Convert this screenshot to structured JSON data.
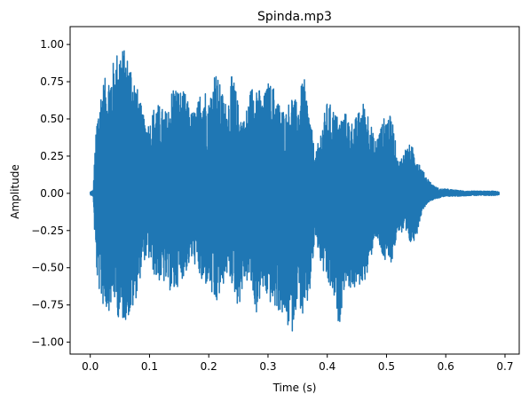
{
  "chart_data": {
    "type": "line",
    "title": "Spinda.mp3",
    "xlabel": "Time (s)",
    "ylabel": "Amplitude",
    "xlim": [
      -0.034,
      0.724
    ],
    "ylim": [
      -1.08,
      1.12
    ],
    "x_ticks": [
      0.0,
      0.1,
      0.2,
      0.3,
      0.4,
      0.5,
      0.6,
      0.7
    ],
    "x_tick_labels": [
      "0.0",
      "0.1",
      "0.2",
      "0.3",
      "0.4",
      "0.5",
      "0.6",
      "0.7"
    ],
    "y_ticks": [
      -1.0,
      -0.75,
      -0.5,
      -0.25,
      0.0,
      0.25,
      0.5,
      0.75,
      1.0
    ],
    "y_tick_labels": [
      "−1.00",
      "−0.75",
      "−0.50",
      "−0.25",
      "0.00",
      "0.25",
      "0.50",
      "0.75",
      "1.00"
    ],
    "grid": false,
    "series": [
      {
        "color": "#1f77b4",
        "description_of_shape": "dense audio waveform oscillating around zero",
        "envelope": {
          "t": [
            0.0,
            0.005,
            0.008,
            0.012,
            0.02,
            0.03,
            0.04,
            0.05,
            0.06,
            0.07,
            0.08,
            0.09,
            0.1,
            0.11,
            0.12,
            0.13,
            0.14,
            0.15,
            0.16,
            0.17,
            0.18,
            0.19,
            0.2,
            0.21,
            0.22,
            0.23,
            0.24,
            0.25,
            0.26,
            0.27,
            0.28,
            0.29,
            0.3,
            0.31,
            0.32,
            0.33,
            0.34,
            0.35,
            0.36,
            0.37,
            0.38,
            0.39,
            0.4,
            0.41,
            0.42,
            0.43,
            0.44,
            0.45,
            0.46,
            0.47,
            0.48,
            0.49,
            0.5,
            0.51,
            0.52,
            0.53,
            0.54,
            0.55,
            0.56,
            0.57,
            0.58,
            0.59,
            0.6,
            0.62,
            0.64,
            0.66,
            0.68,
            0.69
          ],
          "max": [
            0.01,
            0.02,
            0.3,
            0.55,
            0.75,
            0.8,
            0.9,
            1.02,
            0.95,
            0.88,
            0.7,
            0.52,
            0.48,
            0.62,
            0.58,
            0.55,
            0.75,
            0.7,
            0.68,
            0.55,
            0.58,
            0.78,
            0.62,
            0.85,
            0.72,
            0.6,
            0.82,
            0.6,
            0.5,
            0.7,
            0.8,
            0.62,
            0.75,
            0.72,
            0.6,
            0.55,
            0.68,
            0.6,
            0.8,
            0.55,
            0.25,
            0.45,
            0.62,
            0.58,
            0.5,
            0.55,
            0.48,
            0.52,
            0.62,
            0.55,
            0.35,
            0.45,
            0.55,
            0.5,
            0.2,
            0.3,
            0.33,
            0.28,
            0.16,
            0.1,
            0.05,
            0.03,
            0.03,
            0.02,
            0.015,
            0.015,
            0.015,
            0.01
          ],
          "min": [
            -0.01,
            -0.02,
            -0.35,
            -0.6,
            -0.75,
            -0.8,
            -0.72,
            -0.88,
            -0.85,
            -0.82,
            -0.66,
            -0.45,
            -0.45,
            -0.58,
            -0.6,
            -0.62,
            -0.7,
            -0.6,
            -0.55,
            -0.45,
            -0.5,
            -0.65,
            -0.6,
            -0.8,
            -0.68,
            -0.55,
            -0.62,
            -0.78,
            -0.6,
            -0.6,
            -0.82,
            -0.66,
            -0.72,
            -0.78,
            -0.8,
            -0.88,
            -0.96,
            -0.7,
            -0.88,
            -0.7,
            -0.3,
            -0.5,
            -0.62,
            -0.7,
            -0.9,
            -0.6,
            -0.65,
            -0.65,
            -0.6,
            -0.55,
            -0.28,
            -0.4,
            -0.5,
            -0.45,
            -0.25,
            -0.3,
            -0.35,
            -0.3,
            -0.12,
            -0.06,
            -0.04,
            -0.03,
            -0.02,
            -0.02,
            -0.015,
            -0.015,
            -0.015,
            -0.01
          ]
        }
      }
    ]
  }
}
